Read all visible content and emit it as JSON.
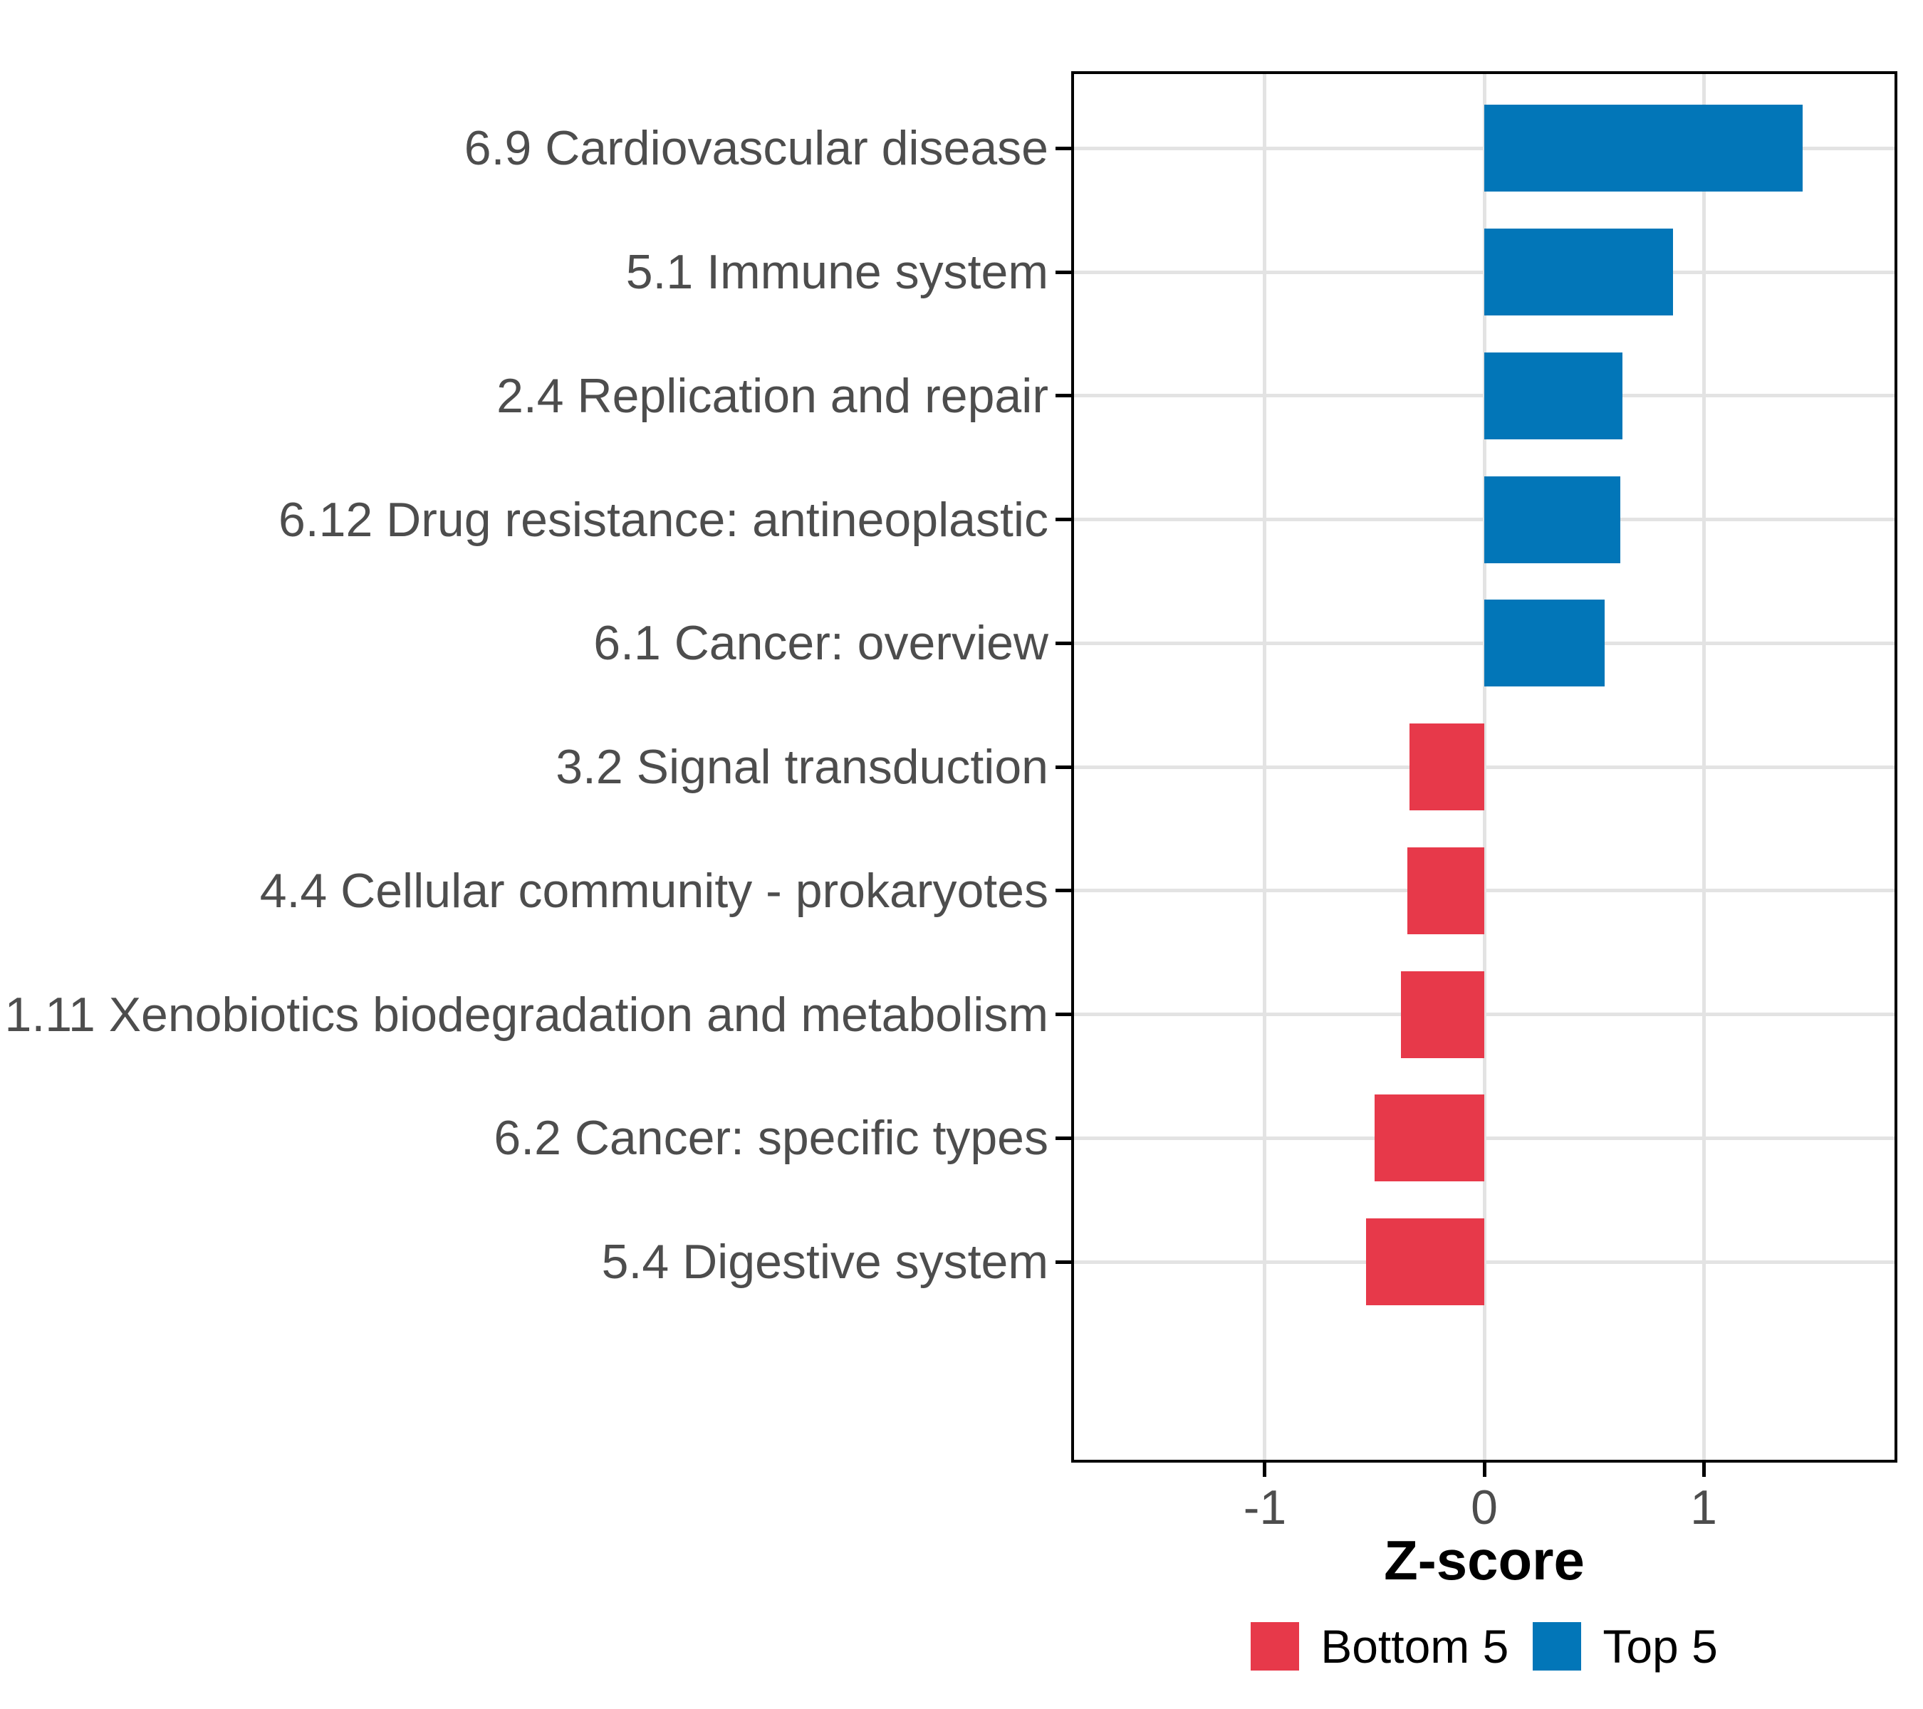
{
  "chart_data": {
    "type": "bar",
    "orientation": "horizontal",
    "title": "",
    "xlabel": "Z-score",
    "ylabel": "",
    "categories": [
      "6.9 Cardiovascular disease",
      "5.1 Immune system",
      "2.4 Replication and repair",
      "6.12 Drug resistance: antineoplastic",
      "6.1 Cancer: overview",
      "3.2 Signal transduction",
      "4.4 Cellular community - prokaryotes",
      "1.11 Xenobiotics biodegradation and metabolism",
      "6.2 Cancer: specific types",
      "5.4 Digestive system"
    ],
    "values": [
      1.45,
      0.86,
      0.63,
      0.62,
      0.55,
      -0.34,
      -0.35,
      -0.38,
      -0.5,
      -0.54
    ],
    "groups": [
      "Top 5",
      "Top 5",
      "Top 5",
      "Top 5",
      "Top 5",
      "Bottom 5",
      "Bottom 5",
      "Bottom 5",
      "Bottom 5",
      "Bottom 5"
    ],
    "colors": {
      "Top 5": "#0276b8",
      "Bottom 5": "#e7394a"
    },
    "x_ticks": [
      {
        "label": "-1",
        "value": -1
      },
      {
        "label": "0",
        "value": 0
      },
      {
        "label": "1",
        "value": 1
      }
    ],
    "xlim": [
      -1.87,
      1.87
    ],
    "bar_width_fraction": 0.7,
    "grid": "major",
    "panel_border": "#000000",
    "gridline_color": "#e3e3e3",
    "tick_label_color": "#4d4d4d",
    "legend": {
      "position": "bottom",
      "entries": [
        {
          "label": "Bottom 5",
          "color": "#e7394a"
        },
        {
          "label": "Top 5",
          "color": "#0276b8"
        }
      ]
    }
  }
}
